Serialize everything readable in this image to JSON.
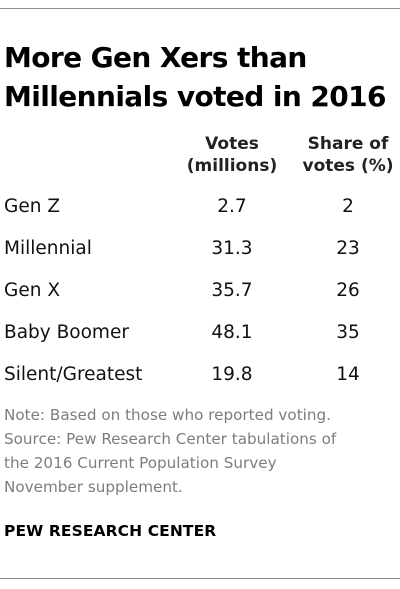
{
  "title_lines": [
    "More Gen Xers than",
    "Millennials voted in 2016"
  ],
  "chart_data": {
    "type": "table",
    "title": "More Gen Xers than Millennials voted in 2016",
    "columns": [
      {
        "key": "votes",
        "header": [
          "Votes",
          "(millions)"
        ]
      },
      {
        "key": "share",
        "header": [
          "Share of",
          "votes (%)"
        ]
      }
    ],
    "rows": [
      {
        "generation": "Gen Z",
        "votes": "2.7",
        "share": "2"
      },
      {
        "generation": "Millennial",
        "votes": "31.3",
        "share": "23"
      },
      {
        "generation": "Gen X",
        "votes": "35.7",
        "share": "26"
      },
      {
        "generation": "Baby Boomer",
        "votes": "48.1",
        "share": "35"
      },
      {
        "generation": "Silent/Greatest",
        "votes": "19.8",
        "share": "14"
      }
    ]
  },
  "note_lines": [
    "Note: Based on those who reported voting.",
    "Source: Pew Research Center tabulations of",
    "the 2016 Current Population Survey",
    "November supplement."
  ],
  "brand": "PEW RESEARCH CENTER",
  "colors": {
    "text": "#000000",
    "note": "#7d7d7d",
    "rule": "#8c8c8c"
  }
}
